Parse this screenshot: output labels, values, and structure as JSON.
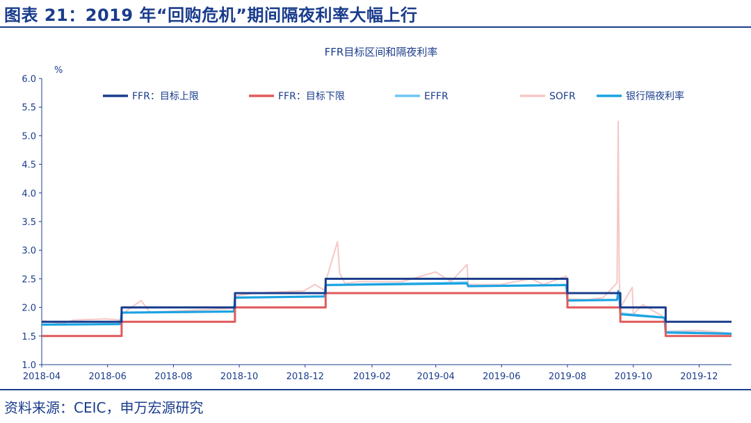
{
  "figure": {
    "title": "图表 21：2019 年“回购危机”期间隔夜利率大幅上行",
    "source": "资料来源：CEIC，申万宏源研究"
  },
  "colors": {
    "ffr_upper": "#1a3c8c",
    "ffr_lower": "#e05a5a",
    "effr": "#6ec6f5",
    "sofr": "#f7c7c7",
    "bank": "#1aa3e0"
  },
  "chart_data": {
    "type": "line",
    "title": "FFR目标区间和隔夜利率",
    "ylabel": "%",
    "xlabel": "",
    "ylim": [
      1.0,
      6.0
    ],
    "yticks": [
      "1.0",
      "1.5",
      "2.0",
      "2.5",
      "3.0",
      "3.5",
      "4.0",
      "4.5",
      "5.0",
      "5.5",
      "6.0"
    ],
    "xlim": [
      "2018-04-01",
      "2019-12-31"
    ],
    "xticks": [
      "2018-04",
      "2018-06",
      "2018-08",
      "2018-10",
      "2018-12",
      "2019-02",
      "2019-04",
      "2019-06",
      "2019-08",
      "2019-10",
      "2019-12"
    ],
    "grid": false,
    "legend_position": "top",
    "series": [
      {
        "name": "FFR：目标上限",
        "style": "step",
        "x": [
          "2018-04-01",
          "2018-06-14",
          "2018-09-27",
          "2018-12-20",
          "2019-08-01",
          "2019-09-19",
          "2019-10-31",
          "2019-12-31"
        ],
        "values": [
          1.75,
          2.0,
          2.25,
          2.5,
          2.25,
          2.0,
          1.75,
          1.75
        ]
      },
      {
        "name": "FFR：目标下限",
        "style": "step",
        "x": [
          "2018-04-01",
          "2018-06-14",
          "2018-09-27",
          "2018-12-20",
          "2019-08-01",
          "2019-09-19",
          "2019-10-31",
          "2019-12-31"
        ],
        "values": [
          1.5,
          1.75,
          2.0,
          2.25,
          2.0,
          1.75,
          1.5,
          1.5
        ]
      },
      {
        "name": "EFFR",
        "style": "line",
        "x": [
          "2018-04-01",
          "2018-06-13",
          "2018-06-14",
          "2018-09-26",
          "2018-09-27",
          "2018-12-19",
          "2018-12-20",
          "2019-04-30",
          "2019-05-01",
          "2019-07-31",
          "2019-08-01",
          "2019-09-16",
          "2019-09-17",
          "2019-09-18",
          "2019-09-19",
          "2019-10-30",
          "2019-10-31",
          "2019-12-31"
        ],
        "values": [
          1.69,
          1.7,
          1.9,
          1.92,
          2.18,
          2.2,
          2.4,
          2.44,
          2.38,
          2.4,
          2.13,
          2.14,
          2.3,
          2.25,
          1.9,
          1.83,
          1.58,
          1.55
        ]
      },
      {
        "name": "SOFR",
        "style": "line",
        "x": [
          "2018-04-01",
          "2018-04-20",
          "2018-05-01",
          "2018-05-31",
          "2018-06-13",
          "2018-06-14",
          "2018-07-02",
          "2018-07-10",
          "2018-08-31",
          "2018-09-26",
          "2018-09-27",
          "2018-10-15",
          "2018-11-30",
          "2018-12-10",
          "2018-12-19",
          "2018-12-20",
          "2018-12-31",
          "2019-01-02",
          "2019-01-07",
          "2019-01-20",
          "2019-02-01",
          "2019-03-01",
          "2019-04-01",
          "2019-04-15",
          "2019-04-30",
          "2019-05-01",
          "2019-05-31",
          "2019-06-28",
          "2019-07-10",
          "2019-07-31",
          "2019-08-01",
          "2019-08-20",
          "2019-09-03",
          "2019-09-16",
          "2019-09-17",
          "2019-09-18",
          "2019-09-19",
          "2019-09-30",
          "2019-10-01",
          "2019-10-10",
          "2019-10-30",
          "2019-10-31",
          "2019-11-30",
          "2019-12-31"
        ],
        "values": [
          1.77,
          1.72,
          1.78,
          1.8,
          1.78,
          1.88,
          2.12,
          1.92,
          1.96,
          1.98,
          2.2,
          2.25,
          2.29,
          2.4,
          2.3,
          2.45,
          3.15,
          2.6,
          2.42,
          2.45,
          2.45,
          2.45,
          2.62,
          2.45,
          2.75,
          2.4,
          2.4,
          2.5,
          2.4,
          2.55,
          2.15,
          2.14,
          2.17,
          2.43,
          5.25,
          2.55,
          2.0,
          2.35,
          1.88,
          2.05,
          1.82,
          1.58,
          1.6,
          1.55
        ]
      },
      {
        "name": "银行隔夜利率",
        "style": "line",
        "x": [
          "2018-04-01",
          "2018-06-13",
          "2018-06-14",
          "2018-09-26",
          "2018-09-27",
          "2018-12-19",
          "2018-12-20",
          "2019-04-30",
          "2019-05-01",
          "2019-07-31",
          "2019-08-01",
          "2019-09-16",
          "2019-09-17",
          "2019-09-18",
          "2019-09-19",
          "2019-10-30",
          "2019-10-31",
          "2019-12-31"
        ],
        "values": [
          1.7,
          1.71,
          1.91,
          1.93,
          2.17,
          2.19,
          2.39,
          2.42,
          2.37,
          2.39,
          2.12,
          2.13,
          2.28,
          2.24,
          1.88,
          1.82,
          1.56,
          1.54
        ]
      }
    ]
  }
}
